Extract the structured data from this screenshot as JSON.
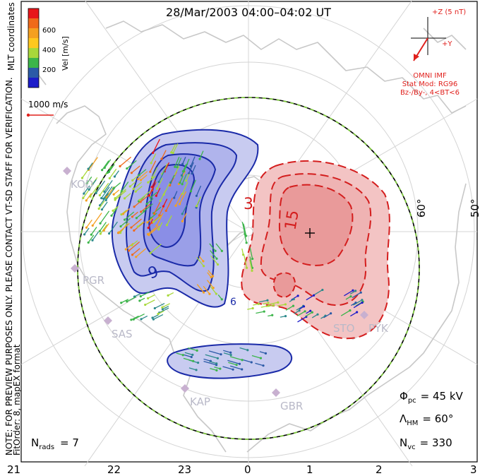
{
  "title": "28/Mar/2003 04:00–04:02 UT",
  "colorbar": {
    "label": "Vel [m/s]",
    "ticks": [
      "600",
      "400",
      "200"
    ],
    "colors": [
      "#e8161b",
      "#f06a1a",
      "#f5a020",
      "#a8d83a",
      "#3cb54a",
      "#2d8a8c",
      "#2b5aa7",
      "#1c1cc9"
    ]
  },
  "coord_label": "MLT coordinates",
  "scale_label": "1000 m/s",
  "preview_note": "NOTE: FOR PREVIEW PURPOSES ONLY. PLEASE CONTACT VT-SD STAFF FOR VERIFICATION.",
  "fit_note": "FitOrder: 8, mapEX format",
  "imf": {
    "z_label": "+Z (5 nT)",
    "y_label": "+Y",
    "title": "OMNI IMF",
    "stat_mod": "Stat Mod: RG96",
    "condition": "Bz-/By-, 4<BT<6"
  },
  "latitudes": [
    "60°",
    "50°"
  ],
  "contour_labels": [
    "3",
    "15",
    "9",
    "6"
  ],
  "radars": [
    "KOD",
    "PGR",
    "SAS",
    "KAP",
    "GBR",
    "STO",
    "PYK"
  ],
  "stats": {
    "phi_label": "Φ",
    "phi_sub": "pc",
    "phi_value": "= 45 kV",
    "lambda_label": "Λ",
    "lambda_sub": "HM",
    "lambda_value": "= 60°",
    "nvc_label": "N",
    "nvc_sub": "vc",
    "nvc_value": "= 330",
    "nrads_label": "N",
    "nrads_sub": "rads",
    "nrads_value": "= 7"
  },
  "mlt_ticks": [
    "21",
    "22",
    "23",
    "0",
    "1",
    "2",
    "3"
  ],
  "colors": {
    "negative_cell": "#c8cbf0",
    "negative_core": "#8a8ee6",
    "negative_line": "#1a2aa8",
    "positive_cell": "#f3c4c4",
    "positive_core": "#e99a9a",
    "positive_line": "#d41e1e",
    "boundary_dash": "#7fcf3a",
    "coast": "#c8c8c8"
  }
}
